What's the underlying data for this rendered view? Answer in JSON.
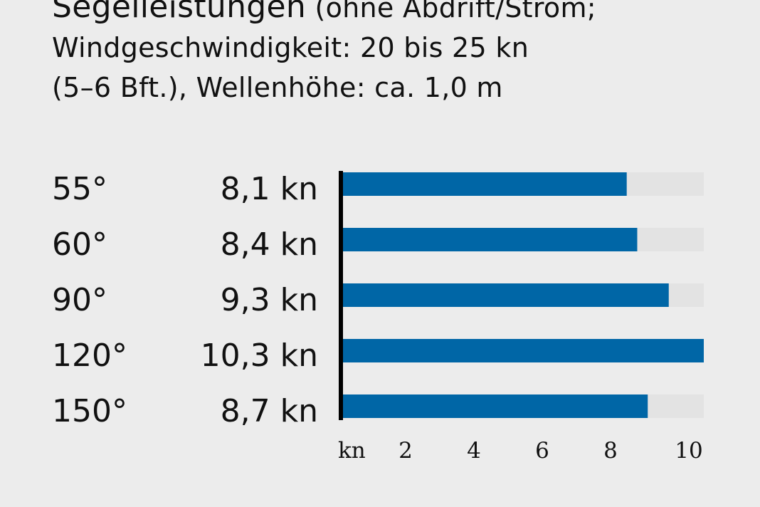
{
  "header": {
    "title": "Segelleistungen",
    "subtitle_part1": "(ohne Abdrift/Strom;",
    "subtitle_line2": "Windgeschwindigkeit: 20 bis 25 kn",
    "subtitle_line3": "(5–6 Bft.), Wellenhöhe: ca. 1,0 m"
  },
  "chart_data": {
    "type": "bar",
    "orientation": "horizontal",
    "categories": [
      "55°",
      "60°",
      "90°",
      "120°",
      "150°"
    ],
    "values": [
      8.1,
      8.4,
      9.3,
      10.3,
      8.7
    ],
    "value_labels": [
      "8,1 kn",
      "8,4 kn",
      "9,3 kn",
      "10,3 kn",
      "8,7 kn"
    ],
    "xlabel": "kn",
    "xticks": [
      2,
      4,
      6,
      8,
      10
    ],
    "xtick_labels": [
      "2",
      "4",
      "6",
      "8",
      "10"
    ],
    "xlim": [
      0,
      10.3
    ],
    "grid": false,
    "bar_color": "#0066a6",
    "track_color": "#e3e3e3",
    "axis_color": "#000000"
  }
}
